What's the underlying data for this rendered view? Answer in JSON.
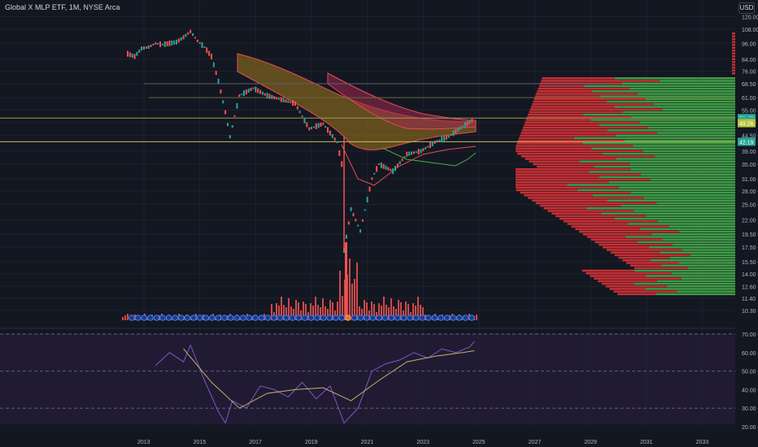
{
  "header": {
    "title": "Global X MLP ETF, 1M, NYSE Arca",
    "currency": "USD"
  },
  "chart_data": [
    {
      "type": "candlestick",
      "title": "Global X MLP ETF, 1M, NYSE Arca",
      "scale": "log",
      "ylim": [
        9.6,
        120
      ],
      "y_ticks": [
        "120.00",
        "108.00",
        "96.00",
        "84.00",
        "76.00",
        "68.50",
        "61.00",
        "55.00",
        "49.50",
        "44.50",
        "39.00",
        "35.00",
        "31.00",
        "28.00",
        "25.00",
        "22.00",
        "19.50",
        "17.50",
        "15.50",
        "14.00",
        "12.60",
        "11.40",
        "10.30"
      ],
      "x_ticks": [
        "2013",
        "2015",
        "2017",
        "2019",
        "2021",
        "2023",
        "2025",
        "2027",
        "2029",
        "2031",
        "2033"
      ],
      "price_labels": [
        "51.43",
        "50.17",
        "49.26",
        "42.19"
      ],
      "close_series": [
        {
          "t": "2012-06",
          "v": 88
        },
        {
          "t": "2012-09",
          "v": 86
        },
        {
          "t": "2012-12",
          "v": 92
        },
        {
          "t": "2013-03",
          "v": 93
        },
        {
          "t": "2013-06",
          "v": 96
        },
        {
          "t": "2013-09",
          "v": 95
        },
        {
          "t": "2013-12",
          "v": 96
        },
        {
          "t": "2014-03",
          "v": 97
        },
        {
          "t": "2014-06",
          "v": 101
        },
        {
          "t": "2014-09",
          "v": 106
        },
        {
          "t": "2014-12",
          "v": 98
        },
        {
          "t": "2015-03",
          "v": 93
        },
        {
          "t": "2015-06",
          "v": 86
        },
        {
          "t": "2015-09",
          "v": 70
        },
        {
          "t": "2015-12",
          "v": 54
        },
        {
          "t": "2016-02",
          "v": 44
        },
        {
          "t": "2016-06",
          "v": 62
        },
        {
          "t": "2016-12",
          "v": 66
        },
        {
          "t": "2017-06",
          "v": 62
        },
        {
          "t": "2017-12",
          "v": 60
        },
        {
          "t": "2018-06",
          "v": 58
        },
        {
          "t": "2018-12",
          "v": 47
        },
        {
          "t": "2019-06",
          "v": 49
        },
        {
          "t": "2019-12",
          "v": 42
        },
        {
          "t": "2020-02",
          "v": 35
        },
        {
          "t": "2020-03",
          "v": 17
        },
        {
          "t": "2020-06",
          "v": 24
        },
        {
          "t": "2020-10",
          "v": 20
        },
        {
          "t": "2021-03",
          "v": 31
        },
        {
          "t": "2021-06",
          "v": 35
        },
        {
          "t": "2021-12",
          "v": 33
        },
        {
          "t": "2022-06",
          "v": 38
        },
        {
          "t": "2022-12",
          "v": 39
        },
        {
          "t": "2023-06",
          "v": 42
        },
        {
          "t": "2023-12",
          "v": 44
        },
        {
          "t": "2024-06",
          "v": 48
        },
        {
          "t": "2024-11",
          "v": 51
        }
      ],
      "horizontal_levels": [
        68.5,
        61.0,
        51.43,
        42.19
      ],
      "volume_profile": "red/green horizontal histogram on right side",
      "events_row": "circular event markers along bottom of price pane"
    },
    {
      "type": "line",
      "title": "RSI",
      "ylim": [
        20,
        70
      ],
      "y_ticks": [
        "70.00",
        "60.00",
        "50.00",
        "40.00",
        "30.00",
        "20.00"
      ],
      "levels": [
        70,
        50,
        30
      ],
      "rsi": [
        {
          "t": "2013-06",
          "v": 53
        },
        {
          "t": "2013-12",
          "v": 60
        },
        {
          "t": "2014-06",
          "v": 55
        },
        {
          "t": "2014-09",
          "v": 64
        },
        {
          "t": "2015-03",
          "v": 45
        },
        {
          "t": "2015-09",
          "v": 28
        },
        {
          "t": "2015-12",
          "v": 22
        },
        {
          "t": "2016-03",
          "v": 34
        },
        {
          "t": "2016-09",
          "v": 30
        },
        {
          "t": "2017-03",
          "v": 42
        },
        {
          "t": "2017-09",
          "v": 40
        },
        {
          "t": "2018-03",
          "v": 36
        },
        {
          "t": "2018-09",
          "v": 44
        },
        {
          "t": "2019-03",
          "v": 35
        },
        {
          "t": "2019-09",
          "v": 42
        },
        {
          "t": "2020-03",
          "v": 22
        },
        {
          "t": "2020-09",
          "v": 30
        },
        {
          "t": "2021-03",
          "v": 50
        },
        {
          "t": "2021-09",
          "v": 54
        },
        {
          "t": "2022-03",
          "v": 56
        },
        {
          "t": "2022-09",
          "v": 60
        },
        {
          "t": "2023-03",
          "v": 57
        },
        {
          "t": "2023-09",
          "v": 62
        },
        {
          "t": "2024-03",
          "v": 60
        },
        {
          "t": "2024-09",
          "v": 63
        },
        {
          "t": "2024-11",
          "v": 66
        }
      ],
      "signal": [
        {
          "t": "2014-06",
          "v": 62
        },
        {
          "t": "2015-06",
          "v": 44
        },
        {
          "t": "2016-06",
          "v": 30
        },
        {
          "t": "2017-06",
          "v": 38
        },
        {
          "t": "2018-06",
          "v": 40
        },
        {
          "t": "2019-06",
          "v": 41
        },
        {
          "t": "2020-06",
          "v": 34
        },
        {
          "t": "2021-06",
          "v": 45
        },
        {
          "t": "2022-06",
          "v": 55
        },
        {
          "t": "2023-06",
          "v": 58
        },
        {
          "t": "2024-06",
          "v": 60
        },
        {
          "t": "2024-11",
          "v": 61
        }
      ]
    }
  ],
  "colors": {
    "up": "#26a69a",
    "down": "#ef5350",
    "rsi": "#7e57c2",
    "signal": "#c9b06b",
    "grid": "#1e222d"
  }
}
